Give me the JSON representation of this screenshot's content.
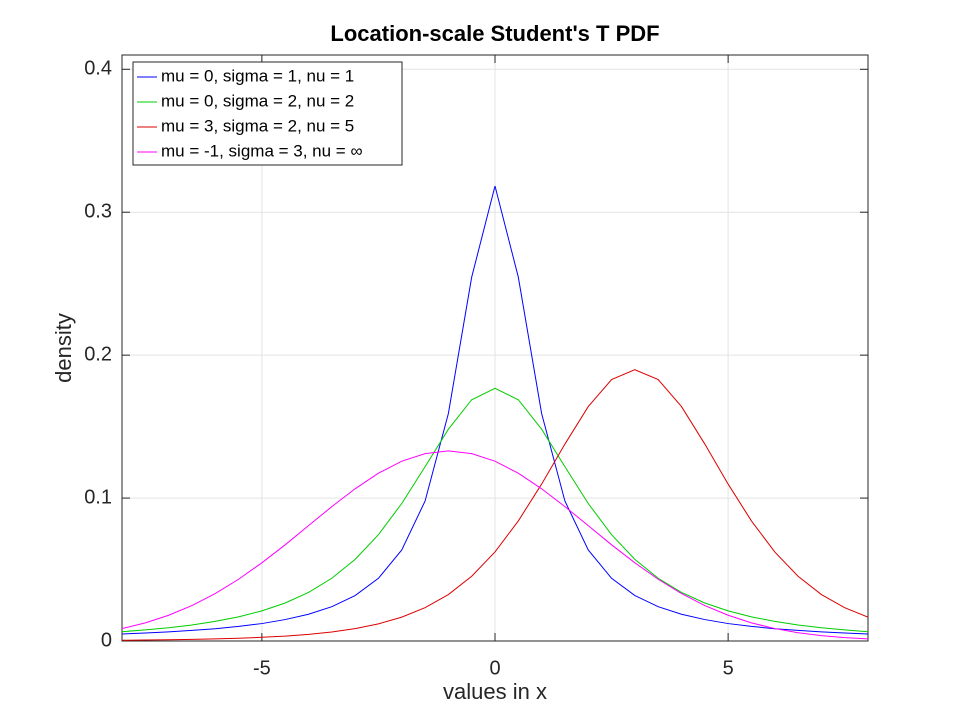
{
  "chart_data": {
    "type": "line",
    "title": "Location-scale Student's T PDF",
    "x_label": "values in x",
    "y_label": "density",
    "xlim": [
      -8,
      8
    ],
    "ylim": [
      0,
      0.41
    ],
    "xticks": [
      -5,
      0,
      5
    ],
    "yticks": [
      0,
      0.1,
      0.2,
      0.3,
      0.4
    ],
    "grid": true,
    "legend_position": "upper-left",
    "x": [
      -8,
      -7.5,
      -7,
      -6.5,
      -6,
      -5.5,
      -5,
      -4.5,
      -4,
      -3.5,
      -3,
      -2.5,
      -2,
      -1.5,
      -1,
      -0.5,
      0,
      0.5,
      1,
      1.5,
      2,
      2.5,
      3,
      3.5,
      4,
      4.5,
      5,
      5.5,
      6,
      6.5,
      7,
      7.5,
      8
    ],
    "series": [
      {
        "name": "mu = 0, sigma = 1, nu = 1",
        "color": "#0000ff",
        "values": [
          0.0049,
          0.0056,
          0.0064,
          0.0074,
          0.0086,
          0.0102,
          0.0122,
          0.015,
          0.0187,
          0.024,
          0.0318,
          0.0439,
          0.0637,
          0.0979,
          0.1592,
          0.2546,
          0.3183,
          0.2546,
          0.1592,
          0.0979,
          0.0637,
          0.0439,
          0.0318,
          0.024,
          0.0187,
          0.015,
          0.0122,
          0.0102,
          0.0086,
          0.0074,
          0.0064,
          0.0056,
          0.0049
        ]
      },
      {
        "name": "mu = 0, sigma = 2, nu = 2",
        "color": "#00cc00",
        "values": [
          0.0065,
          0.0078,
          0.0093,
          0.0112,
          0.0137,
          0.0169,
          0.0211,
          0.0266,
          0.034,
          0.0439,
          0.0571,
          0.0744,
          0.0962,
          0.1219,
          0.1482,
          0.1688,
          0.1768,
          0.1688,
          0.1482,
          0.1219,
          0.0962,
          0.0744,
          0.0571,
          0.0439,
          0.034,
          0.0266,
          0.0211,
          0.0169,
          0.0137,
          0.0112,
          0.0093,
          0.0078,
          0.0065
        ]
      },
      {
        "name": "mu = 3, sigma = 2, nu = 5",
        "color": "#dd0000",
        "values": [
          0.0005,
          0.0007,
          0.0009,
          0.0011,
          0.0015,
          0.0019,
          0.0026,
          0.0034,
          0.0046,
          0.0063,
          0.0087,
          0.012,
          0.0167,
          0.0233,
          0.0325,
          0.0453,
          0.0623,
          0.084,
          0.1098,
          0.1378,
          0.164,
          0.1829,
          0.1898,
          0.1829,
          0.164,
          0.1378,
          0.1098,
          0.084,
          0.0623,
          0.0453,
          0.0325,
          0.0233,
          0.0167
        ]
      },
      {
        "name": "mu = -1, sigma = 3, nu = ∞",
        "color": "#ff00ff",
        "values": [
          0.0087,
          0.0127,
          0.018,
          0.0248,
          0.0332,
          0.0432,
          0.0547,
          0.0673,
          0.0807,
          0.094,
          0.1065,
          0.1174,
          0.1258,
          0.1311,
          0.133,
          0.1311,
          0.1258,
          0.1174,
          0.1065,
          0.094,
          0.0807,
          0.0673,
          0.0547,
          0.0432,
          0.0332,
          0.0248,
          0.018,
          0.0127,
          0.0087,
          0.0058,
          0.0038,
          0.0024,
          0.0015
        ]
      }
    ]
  }
}
